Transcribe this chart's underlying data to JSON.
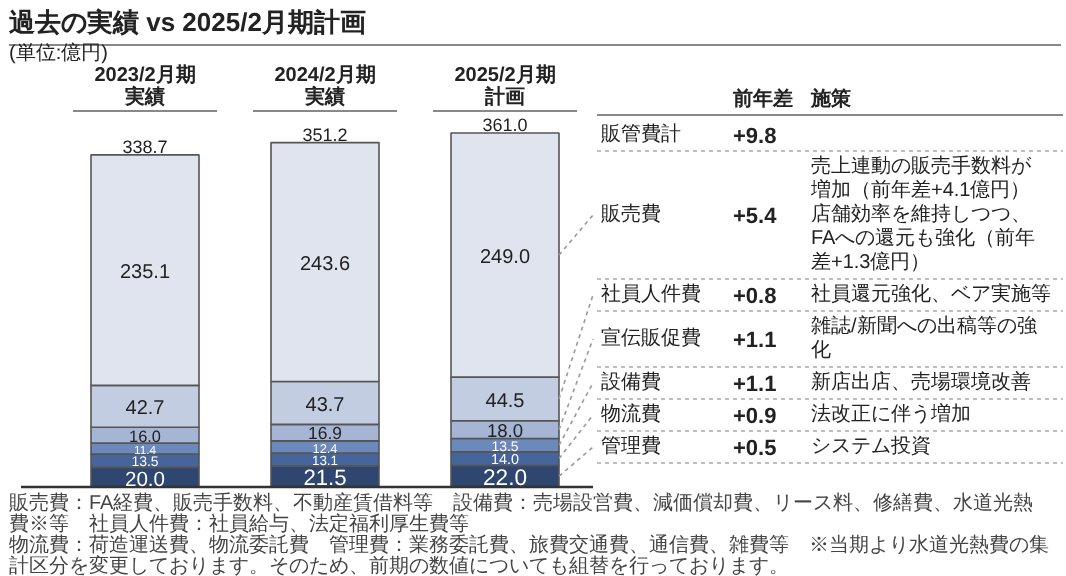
{
  "chart_data": {
    "type": "bar",
    "stacked": true,
    "title": "過去の実績 vs 2025/2月期計画",
    "subtitle": "(単位:億円)",
    "categories": [
      "2023/2月期実績",
      "2024/2月期実績",
      "2025/2月期計画"
    ],
    "series": [
      {
        "name": "管理費",
        "color": "#2e4670",
        "values": [
          20.0,
          21.5,
          22.0
        ],
        "value_labels": [
          "20.0",
          "21.5",
          "22.0"
        ]
      },
      {
        "name": "物流費",
        "color": "#46659a",
        "values": [
          13.5,
          13.1,
          14.0
        ],
        "value_labels": [
          "13.5",
          "13.1",
          "14.0"
        ]
      },
      {
        "name": "設備費",
        "color": "#6c89bb",
        "values": [
          11.4,
          12.4,
          13.5
        ],
        "value_labels": [
          "11.4",
          "12.4",
          "13.5"
        ]
      },
      {
        "name": "宣伝販促費",
        "color": "#a5b5d3",
        "values": [
          16.0,
          16.9,
          18.0
        ],
        "value_labels": [
          "16.0",
          "16.9",
          "18.0"
        ]
      },
      {
        "name": "社員人件費",
        "color": "#c3cde1",
        "values": [
          42.7,
          43.7,
          44.5
        ],
        "value_labels": [
          "42.7",
          "43.7",
          "44.5"
        ]
      },
      {
        "name": "販売費",
        "color": "#dfe4ef",
        "values": [
          235.1,
          243.6,
          249.0
        ],
        "value_labels": [
          "235.1",
          "243.6",
          "249.0"
        ]
      }
    ],
    "totals": [
      "338.7",
      "351.2",
      "361.0"
    ],
    "annotations": [
      "前年差",
      "施策",
      "販管費計",
      "+9.8",
      "+5.4",
      "売上連動の販売手数料が増加（前年差+4.1億円）店舗効率を維持しつつ、FAへの還元も強化（前年差+1.3億円）",
      "+0.8",
      "社員還元強化、ベア実施等",
      "+1.1",
      "雑誌/新聞への出稿等の強化",
      "+1.1",
      "新店出店、売場環境改善",
      "+0.9",
      "法改正に伴う増加",
      "+0.5",
      "システム投資",
      "販売費：FA経費、販売手数料、不動産賃借料等　設備費：売場設営費、減価償却費、リース料、修繕費、水道光熱費※等　社員人件費：社員給与、法定福利厚生費等",
      "物流費：荷造運送費、物流委託費　管理費：業務委託費、旅費交通費、通信費、雑費等　※当期より水道光熱費の集計区分を変更しております。そのため、前期の数値についても組替を行っております。"
    ]
  }
}
